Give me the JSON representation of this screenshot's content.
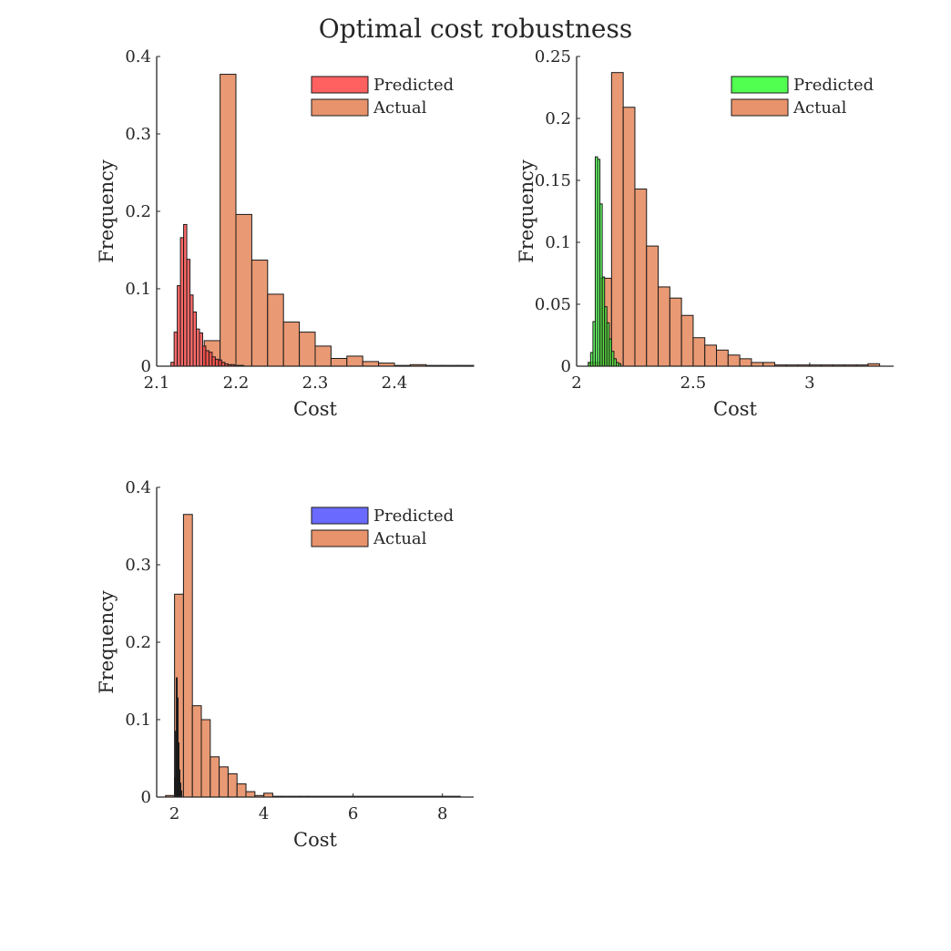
{
  "figure_title": "Optimal cost robustness",
  "chart_data": [
    {
      "type": "bar",
      "subtype": "overlaid-histogram",
      "xlabel": "Cost",
      "ylabel": "Frequency",
      "xlim": [
        2.1,
        2.5
      ],
      "ylim": [
        0,
        0.4
      ],
      "xticks": [
        2.1,
        2.2,
        2.3,
        2.4
      ],
      "xtick_labels": [
        "2.1",
        "2.2",
        "2.3",
        "2.4"
      ],
      "yticks": [
        0,
        0.1,
        0.2,
        0.3,
        0.4
      ],
      "ytick_labels": [
        "0",
        "0.1",
        "0.2",
        "0.3",
        "0.4"
      ],
      "legend_position": "top-right",
      "series": [
        {
          "name": "Actual",
          "color": "#e8936c",
          "opacity": 0.95,
          "bins": [
            [
              2.16,
              2.18,
              0.033
            ],
            [
              2.18,
              2.2,
              0.377
            ],
            [
              2.2,
              2.22,
              0.196
            ],
            [
              2.22,
              2.24,
              0.137
            ],
            [
              2.24,
              2.26,
              0.093
            ],
            [
              2.26,
              2.28,
              0.057
            ],
            [
              2.28,
              2.3,
              0.044
            ],
            [
              2.3,
              2.32,
              0.026
            ],
            [
              2.32,
              2.34,
              0.01
            ],
            [
              2.34,
              2.36,
              0.013
            ],
            [
              2.36,
              2.38,
              0.006
            ],
            [
              2.38,
              2.4,
              0.004
            ],
            [
              2.4,
              2.42,
              0.001
            ],
            [
              2.42,
              2.44,
              0.002
            ],
            [
              2.44,
              2.46,
              0.001
            ],
            [
              2.46,
              2.48,
              0.001
            ],
            [
              2.48,
              2.5,
              0.001
            ]
          ]
        },
        {
          "name": "Predicted",
          "color": "#ff4444",
          "opacity": 0.8,
          "bins": [
            [
              2.118,
              2.122,
              0.005
            ],
            [
              2.122,
              2.126,
              0.044
            ],
            [
              2.126,
              2.13,
              0.104
            ],
            [
              2.13,
              2.134,
              0.166
            ],
            [
              2.134,
              2.138,
              0.183
            ],
            [
              2.138,
              2.142,
              0.138
            ],
            [
              2.142,
              2.146,
              0.092
            ],
            [
              2.146,
              2.15,
              0.07
            ],
            [
              2.15,
              2.154,
              0.048
            ],
            [
              2.154,
              2.158,
              0.043
            ],
            [
              2.158,
              2.162,
              0.026
            ],
            [
              2.162,
              2.166,
              0.02
            ],
            [
              2.166,
              2.17,
              0.018
            ],
            [
              2.17,
              2.174,
              0.012
            ],
            [
              2.174,
              2.178,
              0.009
            ],
            [
              2.178,
              2.182,
              0.008
            ],
            [
              2.182,
              2.186,
              0.005
            ],
            [
              2.186,
              2.19,
              0.003
            ],
            [
              2.19,
              2.194,
              0.002
            ],
            [
              2.194,
              2.198,
              0.002
            ],
            [
              2.198,
              2.202,
              0.001
            ],
            [
              2.202,
              2.206,
              0.001
            ],
            [
              2.206,
              2.21,
              0.001
            ]
          ]
        }
      ]
    },
    {
      "type": "bar",
      "subtype": "overlaid-histogram",
      "xlabel": "Cost",
      "ylabel": "Frequency",
      "xlim": [
        2.0,
        3.36
      ],
      "ylim": [
        0,
        0.25
      ],
      "xticks": [
        2,
        2.5,
        3
      ],
      "xtick_labels": [
        "2",
        "2.5",
        "3"
      ],
      "yticks": [
        0,
        0.05,
        0.1,
        0.15,
        0.2,
        0.25
      ],
      "ytick_labels": [
        "0",
        "0.05",
        "0.1",
        "0.15",
        "0.2",
        "0.25"
      ],
      "legend_position": "top-right",
      "series": [
        {
          "name": "Actual",
          "color": "#e8936c",
          "opacity": 0.95,
          "bins": [
            [
              2.05,
              2.1,
              0.003
            ],
            [
              2.1,
              2.15,
              0.071
            ],
            [
              2.15,
              2.2,
              0.237
            ],
            [
              2.2,
              2.25,
              0.209
            ],
            [
              2.25,
              2.3,
              0.143
            ],
            [
              2.3,
              2.35,
              0.097
            ],
            [
              2.35,
              2.4,
              0.064
            ],
            [
              2.4,
              2.45,
              0.055
            ],
            [
              2.45,
              2.5,
              0.041
            ],
            [
              2.5,
              2.55,
              0.023
            ],
            [
              2.55,
              2.6,
              0.017
            ],
            [
              2.6,
              2.65,
              0.013
            ],
            [
              2.65,
              2.7,
              0.009
            ],
            [
              2.7,
              2.75,
              0.006
            ],
            [
              2.75,
              2.8,
              0.003
            ],
            [
              2.8,
              2.85,
              0.003
            ],
            [
              2.85,
              2.9,
              0.001
            ],
            [
              2.9,
              2.95,
              0.001
            ],
            [
              2.95,
              3.0,
              0.001
            ],
            [
              3.0,
              3.05,
              0.001
            ],
            [
              3.05,
              3.1,
              0.001
            ],
            [
              3.1,
              3.15,
              0.001
            ],
            [
              3.15,
              3.2,
              0.001
            ],
            [
              3.2,
              3.25,
              0.001
            ],
            [
              3.25,
              3.3,
              0.002
            ]
          ]
        },
        {
          "name": "Predicted",
          "color": "#33ff33",
          "opacity": 0.75,
          "bins": [
            [
              2.05,
              2.06,
              0.003
            ],
            [
              2.06,
              2.07,
              0.011
            ],
            [
              2.07,
              2.08,
              0.036
            ],
            [
              2.08,
              2.09,
              0.169
            ],
            [
              2.09,
              2.1,
              0.167
            ],
            [
              2.1,
              2.11,
              0.131
            ],
            [
              2.11,
              2.12,
              0.072
            ],
            [
              2.12,
              2.13,
              0.048
            ],
            [
              2.13,
              2.14,
              0.035
            ],
            [
              2.14,
              2.15,
              0.022
            ],
            [
              2.15,
              2.16,
              0.012
            ],
            [
              2.16,
              2.17,
              0.006
            ],
            [
              2.17,
              2.18,
              0.003
            ],
            [
              2.18,
              2.19,
              0.002
            ]
          ]
        }
      ]
    },
    {
      "type": "bar",
      "subtype": "overlaid-histogram",
      "xlabel": "Cost",
      "ylabel": "Frequency",
      "xlim": [
        1.6,
        8.7
      ],
      "ylim": [
        0,
        0.4
      ],
      "xticks": [
        2,
        4,
        6,
        8
      ],
      "xtick_labels": [
        "2",
        "4",
        "6",
        "8"
      ],
      "yticks": [
        0,
        0.1,
        0.2,
        0.3,
        0.4
      ],
      "ytick_labels": [
        "0",
        "0.1",
        "0.2",
        "0.3",
        "0.4"
      ],
      "legend_position": "top-right",
      "series": [
        {
          "name": "Actual",
          "color": "#e8936c",
          "opacity": 0.95,
          "bins": [
            [
              1.8,
              2.0,
              0.002
            ],
            [
              2.0,
              2.2,
              0.262
            ],
            [
              2.2,
              2.4,
              0.365
            ],
            [
              2.4,
              2.6,
              0.118
            ],
            [
              2.6,
              2.8,
              0.1
            ],
            [
              2.8,
              3.0,
              0.052
            ],
            [
              3.0,
              3.2,
              0.039
            ],
            [
              3.2,
              3.4,
              0.03
            ],
            [
              3.4,
              3.6,
              0.017
            ],
            [
              3.6,
              3.8,
              0.007
            ],
            [
              3.8,
              4.0,
              0.002
            ],
            [
              4.0,
              4.2,
              0.005
            ],
            [
              4.2,
              4.4,
              0.001
            ],
            [
              4.4,
              4.6,
              0.001
            ],
            [
              4.6,
              4.8,
              0.001
            ],
            [
              4.8,
              5.0,
              0.001
            ],
            [
              5.0,
              8.4,
              0.001
            ]
          ]
        },
        {
          "name": "Predicted",
          "color": "#5050ff",
          "opacity": 0.75,
          "bins": [
            [
              2.0,
              2.02,
              0.025
            ],
            [
              2.02,
              2.04,
              0.085
            ],
            [
              2.04,
              2.06,
              0.154
            ],
            [
              2.06,
              2.08,
              0.128
            ],
            [
              2.08,
              2.1,
              0.07
            ],
            [
              2.1,
              2.12,
              0.035
            ],
            [
              2.12,
              2.14,
              0.018
            ],
            [
              2.14,
              2.16,
              0.008
            ]
          ]
        }
      ]
    }
  ]
}
